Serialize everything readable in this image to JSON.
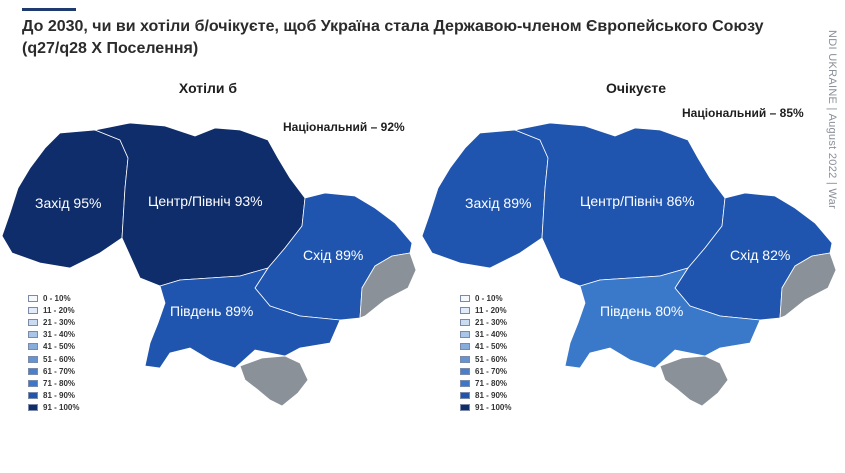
{
  "title": "До 2030, чи ви хотіли б/очікуєте, щоб Україна стала Державою-членом Європейського Союзу (q27/q28 X Поселення)",
  "side_label": "NDI UKRAINE | August 2022 | War",
  "colors": {
    "c91_100": "#0f2d6b",
    "c81_90": "#1f55ae",
    "c71_80": "#3a78c9",
    "unknown": "#8a9198",
    "text_on_map": "#ffffff"
  },
  "legend": [
    {
      "label": "0 - 10%",
      "color": "#f5f8fc"
    },
    {
      "label": "11 - 20%",
      "color": "#e2ecf8"
    },
    {
      "label": "21 - 30%",
      "color": "#c9dcf1"
    },
    {
      "label": "31 - 40%",
      "color": "#a9c6e8"
    },
    {
      "label": "41 - 50%",
      "color": "#86addd"
    },
    {
      "label": "51 - 60%",
      "color": "#6495d2"
    },
    {
      "label": "61 - 70%",
      "color": "#4a80c9"
    },
    {
      "label": "71 - 80%",
      "color": "#3a78c9"
    },
    {
      "label": "81 - 90%",
      "color": "#1f55ae"
    },
    {
      "label": "91 - 100%",
      "color": "#0f2d6b"
    }
  ],
  "panels": [
    {
      "title": "Хотіли б",
      "national": "Національний – 92%",
      "regions": {
        "west": "Захід 95%",
        "center": "Центр/Північ 93%",
        "east": "Схід 89%",
        "south": "Південь 89%"
      },
      "fills": {
        "west": "#0f2d6b",
        "center": "#0f2d6b",
        "east": "#1f55ae",
        "south": "#1f55ae"
      }
    },
    {
      "title": "Очікуєте",
      "national": "Національний – 85%",
      "regions": {
        "west": "Захід 89%",
        "center": "Центр/Північ 86%",
        "east": "Схід 82%",
        "south": "Південь 80%"
      },
      "fills": {
        "west": "#1f55ae",
        "center": "#1f55ae",
        "east": "#1f55ae",
        "south": "#3a78c9"
      }
    }
  ]
}
